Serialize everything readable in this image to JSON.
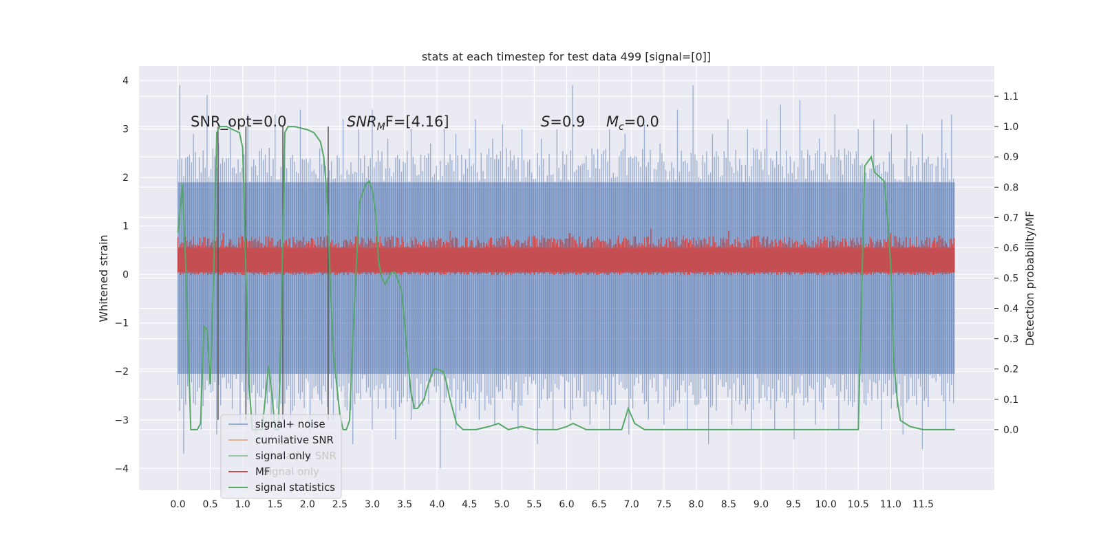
{
  "chart_data": {
    "type": "line",
    "title": "stats at each timestep for test data 499 [signal=[0]]",
    "xlabel": "",
    "ylabel": "Whitened strain",
    "ylabel_right": "Detection probability/MF",
    "xlim": [
      -0.6,
      12.6
    ],
    "ylim": [
      -4.45,
      4.3
    ],
    "ylim_right": [
      -0.2,
      1.2
    ],
    "x_ticks": [
      "0.0",
      "0.5",
      "1.0",
      "1.5",
      "2.0",
      "2.5",
      "3.0",
      "3.5",
      "4.0",
      "4.5",
      "5.0",
      "5.5",
      "6.0",
      "6.5",
      "7.0",
      "7.5",
      "8.0",
      "8.5",
      "9.0",
      "9.5",
      "10.0",
      "10.5",
      "11.0",
      "11.5"
    ],
    "y_ticks_left": [
      "4",
      "3",
      "2",
      "1",
      "0",
      "−1",
      "−2",
      "−3",
      "−4"
    ],
    "y_ticks_right": [
      "1.1",
      "1.0",
      "0.9",
      "0.8",
      "0.7",
      "0.6",
      "0.5",
      "0.4",
      "0.3",
      "0.2",
      "0.1",
      "0.0"
    ],
    "grid": true,
    "annotations": {
      "snr_opt": "SNR_opt=0.0",
      "snr_mf_main": "SNR",
      "snr_mf_sub": "M",
      "snr_mf_rest": "F=[4.16]",
      "s_main": "S",
      "s_rest": "=0.9",
      "mc_main": "M",
      "mc_sub": "c",
      "mc_rest": "=0.0"
    },
    "legend": {
      "position": "lower-left",
      "entries": [
        {
          "label": "signal+ noise",
          "color": "#4c72b0"
        },
        {
          "label": "cumilative SNR",
          "color": "#dd8452"
        },
        {
          "label": "signal only",
          "color": "#55a868"
        },
        {
          "label": "MF",
          "color": "#c44e52"
        },
        {
          "label": "signal statistics",
          "color": "#55a868"
        }
      ],
      "ghost_labels": [
        "mative SNR",
        "signal only"
      ]
    },
    "series": [
      {
        "name": "signal+ noise",
        "axis": "left",
        "color": "#4c72b0",
        "x_range": [
          0.0,
          11.99
        ],
        "envelope_upper": 1.9,
        "envelope_lower": -2.05,
        "peaks_x": [
          0.03,
          0.25,
          0.45,
          0.62,
          0.8,
          1.08,
          1.3,
          1.5,
          1.65,
          1.9,
          2.2,
          2.55,
          2.8,
          3.0,
          3.25,
          3.6,
          3.9,
          4.1,
          4.3,
          4.6,
          4.85,
          5.0,
          5.3,
          5.6,
          5.85,
          6.1,
          6.4,
          6.65,
          6.9,
          7.2,
          7.45,
          7.7,
          7.95,
          8.25,
          8.5,
          8.8,
          9.1,
          9.3,
          9.6,
          9.9,
          10.15,
          10.5,
          10.75,
          11.0,
          11.25,
          11.5,
          11.78,
          11.95
        ],
        "peaks_y": [
          3.9,
          2.9,
          3.7,
          2.7,
          3.2,
          3.3,
          2.6,
          3.3,
          2.5,
          3.4,
          2.6,
          3.2,
          3.0,
          3.4,
          2.8,
          3.0,
          2.7,
          3.0,
          2.9,
          3.2,
          2.8,
          3.1,
          3.0,
          2.8,
          3.0,
          3.9,
          2.6,
          3.0,
          2.9,
          3.1,
          2.7,
          3.4,
          3.9,
          2.9,
          3.2,
          3.0,
          3.2,
          3.5,
          3.6,
          2.8,
          3.3,
          3.0,
          3.2,
          2.9,
          3.1,
          2.9,
          3.2,
          3.3
        ],
        "troughs_x": [
          0.08,
          0.35,
          0.6,
          0.95,
          1.2,
          1.45,
          1.75,
          2.05,
          2.4,
          2.7,
          3.0,
          3.35,
          3.6,
          4.05,
          4.3,
          4.65,
          4.9,
          5.25,
          5.55,
          5.8,
          6.05,
          6.35,
          6.65,
          6.95,
          7.25,
          7.5,
          7.85,
          8.2,
          8.55,
          8.85,
          9.2,
          9.5,
          9.85,
          10.2,
          10.5,
          10.85,
          11.2,
          11.5,
          11.85
        ],
        "troughs_y": [
          -3.7,
          -3.2,
          -3.3,
          -3.1,
          -3.3,
          -3.0,
          -3.2,
          -3.3,
          -3.0,
          -3.5,
          -3.2,
          -3.4,
          -3.0,
          -4.0,
          -3.2,
          -3.0,
          -3.1,
          -3.2,
          -3.5,
          -3.2,
          -3.0,
          -3.1,
          -3.2,
          -3.3,
          -3.0,
          -3.1,
          -3.2,
          -3.5,
          -3.1,
          -3.2,
          -3.2,
          -3.4,
          -3.1,
          -3.2,
          -3.0,
          -3.2,
          -3.3,
          -3.6,
          -3.2
        ]
      },
      {
        "name": "MF",
        "axis": "left",
        "color": "#c44e52",
        "x_range": [
          0.0,
          11.99
        ],
        "envelope_upper": 0.55,
        "envelope_lower": 0.05,
        "peaks_x": [
          0.1,
          0.7,
          1.2,
          1.45,
          2.3,
          3.3,
          4.2,
          5.5,
          6.05,
          6.8,
          7.3,
          7.8,
          8.5,
          8.95,
          10.1,
          11.0,
          11.75,
          11.99
        ],
        "peaks_y": [
          0.8,
          0.85,
          0.75,
          0.75,
          0.8,
          0.8,
          0.9,
          0.8,
          0.85,
          0.8,
          0.95,
          0.8,
          0.9,
          0.8,
          0.8,
          0.85,
          0.8,
          0.75
        ]
      },
      {
        "name": "signal statistics",
        "axis": "right",
        "color": "#55a868",
        "x": [
          0.0,
          0.07,
          0.12,
          0.2,
          0.3,
          0.35,
          0.4,
          0.45,
          0.5,
          0.55,
          0.6,
          0.65,
          0.7,
          0.75,
          0.85,
          0.95,
          1.0,
          1.05,
          1.1,
          1.15,
          1.2,
          1.3,
          1.4,
          1.45,
          1.5,
          1.55,
          1.6,
          1.65,
          1.7,
          1.75,
          1.8,
          2.0,
          2.1,
          2.2,
          2.25,
          2.3,
          2.35,
          2.4,
          2.5,
          2.55,
          2.6,
          2.65,
          2.7,
          2.8,
          2.9,
          2.95,
          3.0,
          3.05,
          3.1,
          3.15,
          3.2,
          3.3,
          3.35,
          3.45,
          3.5,
          3.55,
          3.6,
          3.65,
          3.7,
          3.8,
          3.85,
          3.95,
          4.0,
          4.1,
          4.15,
          4.2,
          4.3,
          4.4,
          4.6,
          4.8,
          4.95,
          5.1,
          5.3,
          5.5,
          5.7,
          5.85,
          6.0,
          6.1,
          6.2,
          6.3,
          6.5,
          6.7,
          6.85,
          6.95,
          7.05,
          7.2,
          7.5,
          8.0,
          8.5,
          9.0,
          9.5,
          9.8,
          10.0,
          10.3,
          10.5,
          10.6,
          10.7,
          10.75,
          10.8,
          10.9,
          10.95,
          11.0,
          11.05,
          11.1,
          11.15,
          11.3,
          11.5,
          11.8,
          11.99
        ],
        "y": [
          0.65,
          0.81,
          0.55,
          0.0,
          0.0,
          0.02,
          0.34,
          0.33,
          0.15,
          0.5,
          0.98,
          1.0,
          1.0,
          1.0,
          0.99,
          0.98,
          0.93,
          0.52,
          0.14,
          0.0,
          0.0,
          0.0,
          0.21,
          0.12,
          0.0,
          0.0,
          0.4,
          0.98,
          1.0,
          1.0,
          1.0,
          0.99,
          0.98,
          0.95,
          0.9,
          0.78,
          0.5,
          0.25,
          0.05,
          0.0,
          0.0,
          0.03,
          0.3,
          0.75,
          0.81,
          0.82,
          0.79,
          0.72,
          0.55,
          0.5,
          0.48,
          0.52,
          0.52,
          0.46,
          0.35,
          0.22,
          0.12,
          0.07,
          0.07,
          0.1,
          0.14,
          0.2,
          0.2,
          0.19,
          0.15,
          0.1,
          0.02,
          0.0,
          0.0,
          0.01,
          0.02,
          0.0,
          0.01,
          0.0,
          0.0,
          0.0,
          0.01,
          0.02,
          0.01,
          0.0,
          0.0,
          0.0,
          0.0,
          0.07,
          0.02,
          0.0,
          0.0,
          0.0,
          0.0,
          0.0,
          0.0,
          0.0,
          0.0,
          0.0,
          0.0,
          0.87,
          0.9,
          0.85,
          0.84,
          0.82,
          0.7,
          0.55,
          0.22,
          0.1,
          0.03,
          0.01,
          0.0,
          0.0,
          0.0
        ]
      }
    ],
    "vertical_lines": {
      "color": "#555555",
      "x": [
        0.62,
        1.05,
        1.62,
        2.32
      ],
      "y_top": 3.05,
      "y_bottom": -3.0
    }
  }
}
